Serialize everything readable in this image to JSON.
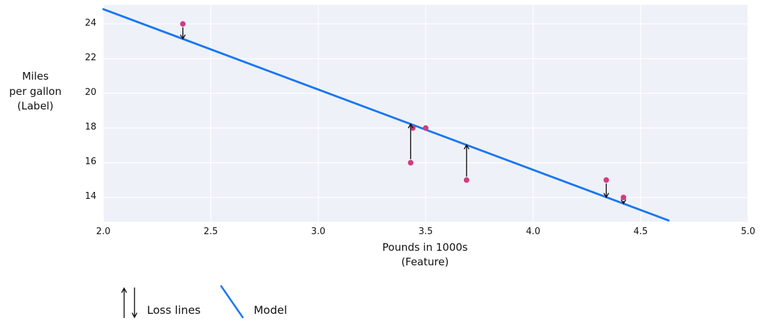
{
  "figure": {
    "ylabel_lines": [
      "Miles",
      "per gallon",
      "(Label)"
    ],
    "xlabel_lines": [
      "Pounds in 1000s",
      "(Feature)"
    ]
  },
  "legend": {
    "loss_label": "Loss lines",
    "model_label": "Model"
  },
  "colors": {
    "plot_bg": "#eef1f8",
    "grid": "#ffffff",
    "point": "#d23c7f",
    "model_line": "#1877f2",
    "arrow": "#111111",
    "text": "#111111"
  },
  "chart_data": {
    "type": "scatter",
    "title": "",
    "xlabel": "Pounds in 1000s (Feature)",
    "ylabel": "Miles per gallon (Label)",
    "xlim": [
      2.0,
      5.0
    ],
    "ylim": [
      12.6,
      25.1
    ],
    "xticks": [
      2.0,
      2.5,
      3.0,
      3.5,
      4.0,
      4.5,
      5.0
    ],
    "xtick_labels": [
      "2.0",
      "2.5",
      "3.0",
      "3.5",
      "4.0",
      "4.5",
      "5.0"
    ],
    "yticks": [
      24,
      22,
      20,
      18,
      16,
      14
    ],
    "ytick_labels": [
      "24",
      "22",
      "20",
      "18",
      "16",
      "14"
    ],
    "grid": true,
    "legend_entries": [
      "Loss lines",
      "Model"
    ],
    "points": [
      {
        "x": 2.37,
        "y": 24.0,
        "loss_arrow": "down",
        "line_y": 23.14
      },
      {
        "x": 3.44,
        "y": 18.0,
        "loss_arrow": null,
        "line_y": 18.18
      },
      {
        "x": 3.5,
        "y": 18.0,
        "loss_arrow": null,
        "line_y": 17.9
      },
      {
        "x": 3.43,
        "y": 16.0,
        "loss_arrow": "up",
        "line_y": 18.23
      },
      {
        "x": 3.69,
        "y": 15.0,
        "loss_arrow": "up",
        "line_y": 17.02
      },
      {
        "x": 4.34,
        "y": 15.0,
        "loss_arrow": "down",
        "line_y": 14.01
      },
      {
        "x": 4.42,
        "y": 14.0,
        "loss_arrow": "down",
        "line_y": 13.64
      }
    ],
    "model_line": {
      "x1": 2.0,
      "y1": 24.85,
      "x2": 4.63,
      "y2": 12.67
    }
  }
}
